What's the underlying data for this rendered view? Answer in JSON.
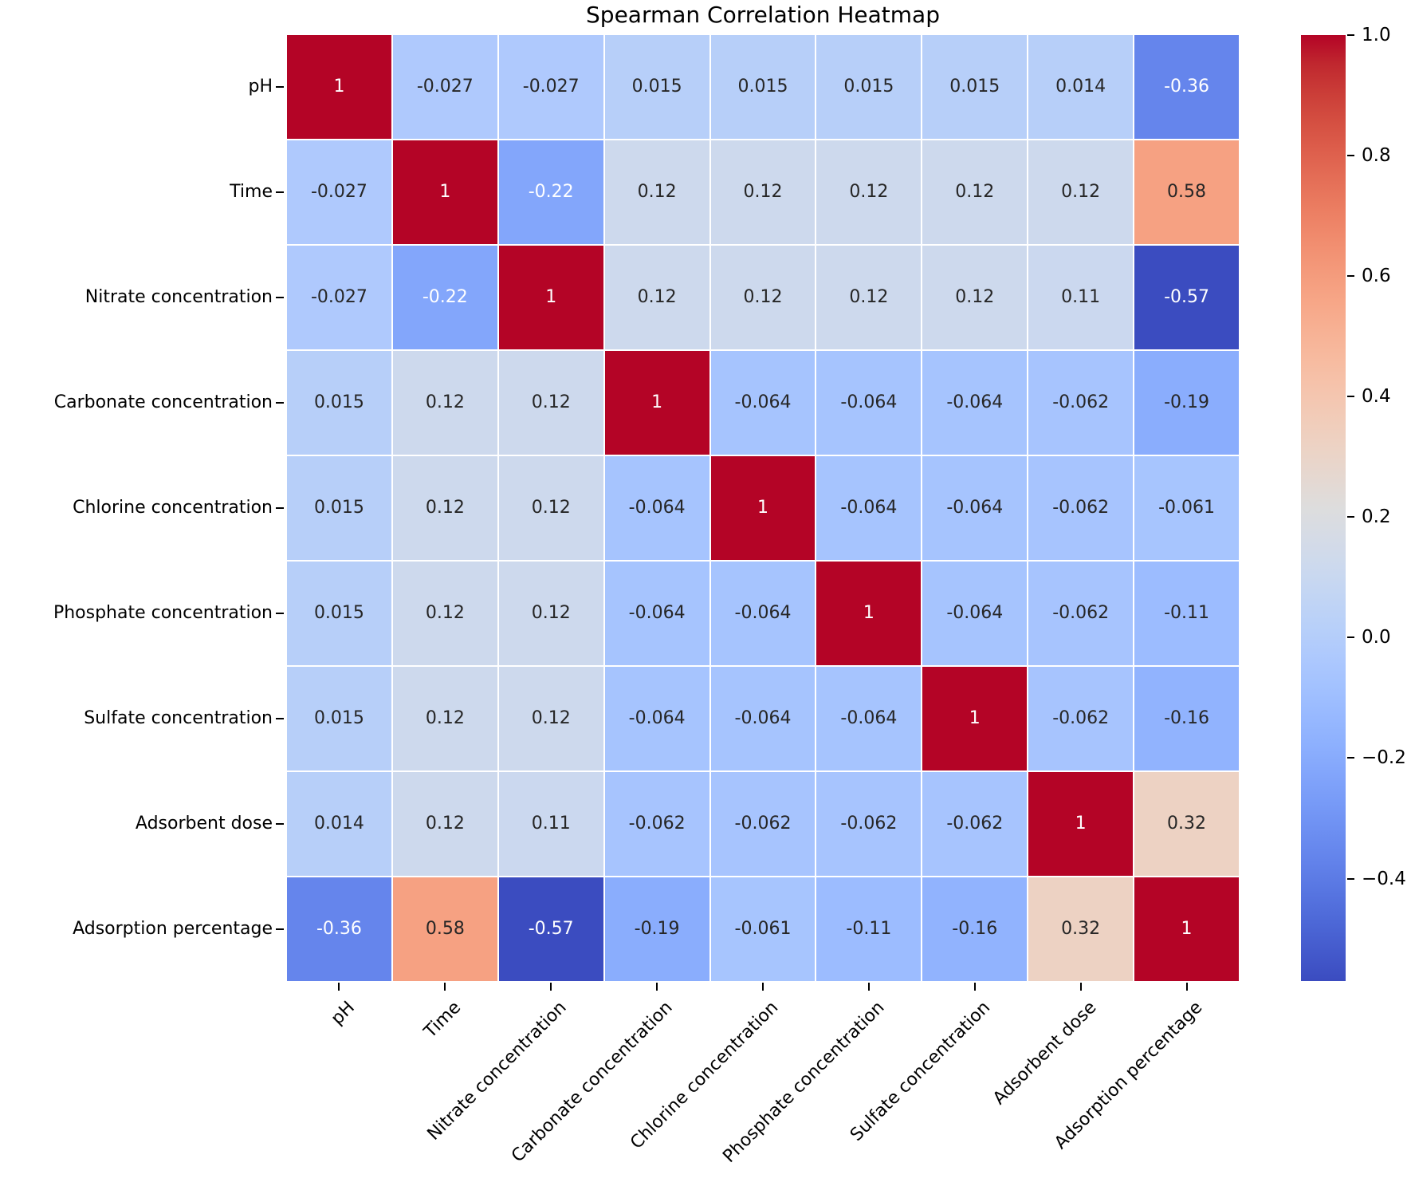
{
  "title": "Spearman Correlation Heatmap",
  "chart_data": {
    "type": "heatmap",
    "title": "Spearman Correlation Heatmap",
    "categories": [
      "pH",
      "Time",
      "Nitrate concentration",
      "Carbonate concentration",
      "Chlorine concentration",
      "Phosphate concentration",
      "Sulfate concentration",
      "Adsorbent dose",
      "Adsorption percentage"
    ],
    "matrix": [
      [
        1,
        -0.027,
        -0.027,
        0.015,
        0.015,
        0.015,
        0.015,
        0.014,
        -0.36
      ],
      [
        -0.027,
        1,
        -0.22,
        0.12,
        0.12,
        0.12,
        0.12,
        0.12,
        0.58
      ],
      [
        -0.027,
        -0.22,
        1,
        0.12,
        0.12,
        0.12,
        0.12,
        0.11,
        -0.57
      ],
      [
        0.015,
        0.12,
        0.12,
        1,
        -0.064,
        -0.064,
        -0.064,
        -0.062,
        -0.19
      ],
      [
        0.015,
        0.12,
        0.12,
        -0.064,
        1,
        -0.064,
        -0.064,
        -0.062,
        -0.061
      ],
      [
        0.015,
        0.12,
        0.12,
        -0.064,
        -0.064,
        1,
        -0.064,
        -0.062,
        -0.11
      ],
      [
        0.015,
        0.12,
        0.12,
        -0.064,
        -0.064,
        -0.064,
        1,
        -0.062,
        -0.16
      ],
      [
        0.014,
        0.12,
        0.11,
        -0.062,
        -0.062,
        -0.062,
        -0.062,
        1,
        0.32
      ],
      [
        -0.36,
        0.58,
        -0.57,
        -0.19,
        -0.061,
        -0.11,
        -0.16,
        0.32,
        1
      ]
    ],
    "cell_labels": [
      [
        "1",
        "-0.027",
        "-0.027",
        "0.015",
        "0.015",
        "0.015",
        "0.015",
        "0.014",
        "-0.36"
      ],
      [
        "-0.027",
        "1",
        "-0.22",
        "0.12",
        "0.12",
        "0.12",
        "0.12",
        "0.12",
        "0.58"
      ],
      [
        "-0.027",
        "-0.22",
        "1",
        "0.12",
        "0.12",
        "0.12",
        "0.12",
        "0.11",
        "-0.57"
      ],
      [
        "0.015",
        "0.12",
        "0.12",
        "1",
        "-0.064",
        "-0.064",
        "-0.064",
        "-0.062",
        "-0.19"
      ],
      [
        "0.015",
        "0.12",
        "0.12",
        "-0.064",
        "1",
        "-0.064",
        "-0.064",
        "-0.062",
        "-0.061"
      ],
      [
        "0.015",
        "0.12",
        "0.12",
        "-0.064",
        "-0.064",
        "1",
        "-0.064",
        "-0.062",
        "-0.11"
      ],
      [
        "0.015",
        "0.12",
        "0.12",
        "-0.064",
        "-0.064",
        "-0.064",
        "1",
        "-0.062",
        "-0.16"
      ],
      [
        "0.014",
        "0.12",
        "0.11",
        "-0.062",
        "-0.062",
        "-0.062",
        "-0.062",
        "1",
        "0.32"
      ],
      [
        "-0.36",
        "0.58",
        "-0.57",
        "-0.19",
        "-0.061",
        "-0.11",
        "-0.16",
        "0.32",
        "1"
      ]
    ],
    "vmin": -0.57,
    "vmax": 1.0,
    "colormap": {
      "name": "coolwarm",
      "anchors": [
        "#3b4cc0",
        "#445acc",
        "#4d68d7",
        "#5775e1",
        "#6282ea",
        "#6c8ef1",
        "#779af7",
        "#82a5fb",
        "#8db0fe",
        "#98b9ff",
        "#a3c2ff",
        "#aec9fd",
        "#b8d0f9",
        "#c2d5f4",
        "#ccd9ee",
        "#d5dbe6",
        "#dddddd",
        "#e5d8d1",
        "#ecd3c5",
        "#f1ccb9",
        "#f5c4ad",
        "#f7bba0",
        "#f7b194",
        "#f7a687",
        "#f49a7b",
        "#f18d6f",
        "#ec7f63",
        "#e57058",
        "#de604d",
        "#d55042",
        "#cb3e38",
        "#c0282f",
        "#b40426"
      ]
    },
    "colorbar": {
      "position": "right",
      "tick_values": [
        1.0,
        0.8,
        0.6,
        0.4,
        0.2,
        0.0,
        -0.2,
        -0.4
      ],
      "tick_labels": [
        "1.0",
        "0.8",
        "0.6",
        "0.4",
        "0.2",
        "0.0",
        "−0.2",
        "−0.4"
      ]
    },
    "annotation_text_dark": "#262626",
    "annotation_text_light": "#ffffff",
    "grid_line_color": "#ffffff",
    "layout": {
      "grid": "off",
      "legend": "colorbar-right",
      "x_label_rotation_deg": 45
    }
  }
}
